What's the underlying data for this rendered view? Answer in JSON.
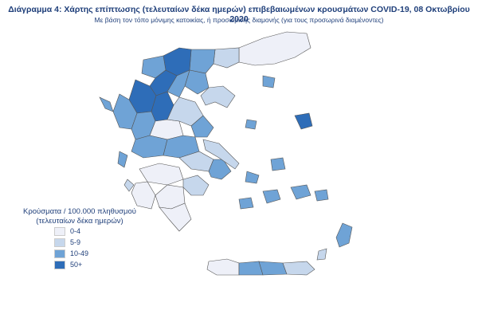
{
  "title": "Διάγραμμα 4: Χάρτης επίπτωσης (τελευταίων δέκα ημερών) επιβεβαιωμένων κρουσμάτων COVID-19, 08 Οκτωβρίου 2020",
  "subtitle": "Με βάση τον τόπο μόνιμης κατοικίας, ή προσωρινής διαμονής (για τους προσωρινά διαμένοντες)",
  "legend": {
    "title": "Κρούσματα / 100.000 πληθυσμού",
    "subtitle": "(τελευταίων δέκα ημερών)",
    "items": [
      {
        "label": "0-4",
        "color": "#eef0f8"
      },
      {
        "label": "5-9",
        "color": "#c6d7ec"
      },
      {
        "label": "10-49",
        "color": "#6fa3d6"
      },
      {
        "label": "50+",
        "color": "#2e6db8"
      }
    ]
  }
}
